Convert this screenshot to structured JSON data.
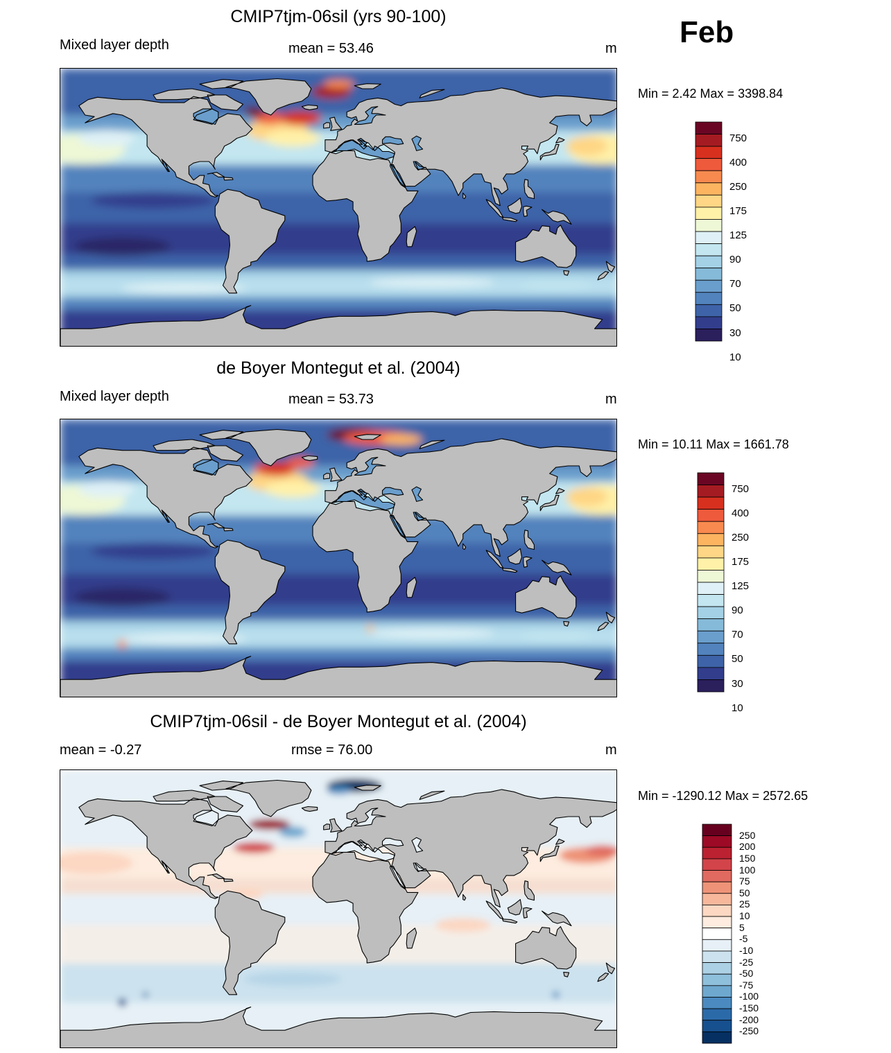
{
  "month": "Feb",
  "panels": [
    {
      "title": "CMIP7tjm-06sil (yrs 90-100)",
      "left_label": "Mixed layer depth",
      "center_label": "mean =  53.46",
      "units": "m",
      "minmax": "Min =   2.42 Max = 3398.84"
    },
    {
      "title": "de Boyer Montegut et al. (2004)",
      "left_label": "Mixed layer depth",
      "center_label": "mean =  53.73",
      "units": "m",
      "minmax": "Min =  10.11 Max = 1661.78"
    },
    {
      "title": "CMIP7tjm-06sil - de Boyer Montegut et al. (2004)",
      "left_label": "mean =  -0.27",
      "center_label": "rmse =  76.00",
      "units": "m",
      "minmax": "Min = -1290.12 Max = 2572.65"
    }
  ],
  "colorbar_abs": {
    "labels": [
      "750",
      "400",
      "250",
      "175",
      "125",
      "90",
      "70",
      "50",
      "30",
      "10"
    ],
    "colors": [
      "#6a0624",
      "#a51b22",
      "#d7301f",
      "#ee5a3c",
      "#f88a4f",
      "#fdb461",
      "#fed685",
      "#fff1a8",
      "#eef8d6",
      "#dff1f6",
      "#c3e6f0",
      "#a4d1e6",
      "#86bad9",
      "#6a9ecc",
      "#5283bd",
      "#3e63a8",
      "#323e8c",
      "#2b1f5c"
    ]
  },
  "colorbar_diff": {
    "labels": [
      "250",
      "200",
      "150",
      "100",
      "75",
      "50",
      "25",
      "10",
      "5",
      "-5",
      "-10",
      "-25",
      "-50",
      "-75",
      "-100",
      "-150",
      "-200",
      "-250"
    ],
    "colors": [
      "#67001f",
      "#9d0a25",
      "#bb2131",
      "#d2444a",
      "#e06a5f",
      "#ee9377",
      "#f7b79b",
      "#fcd7c2",
      "#fdecdf",
      "#ffffff",
      "#e6f0f6",
      "#cce2ee",
      "#acd0e4",
      "#8ebfdb",
      "#6ea8cf",
      "#4a8ac0",
      "#2b6aa9",
      "#17508f",
      "#053061"
    ]
  },
  "colors": {
    "land": "#bebebe",
    "background": "#ffffff"
  }
}
